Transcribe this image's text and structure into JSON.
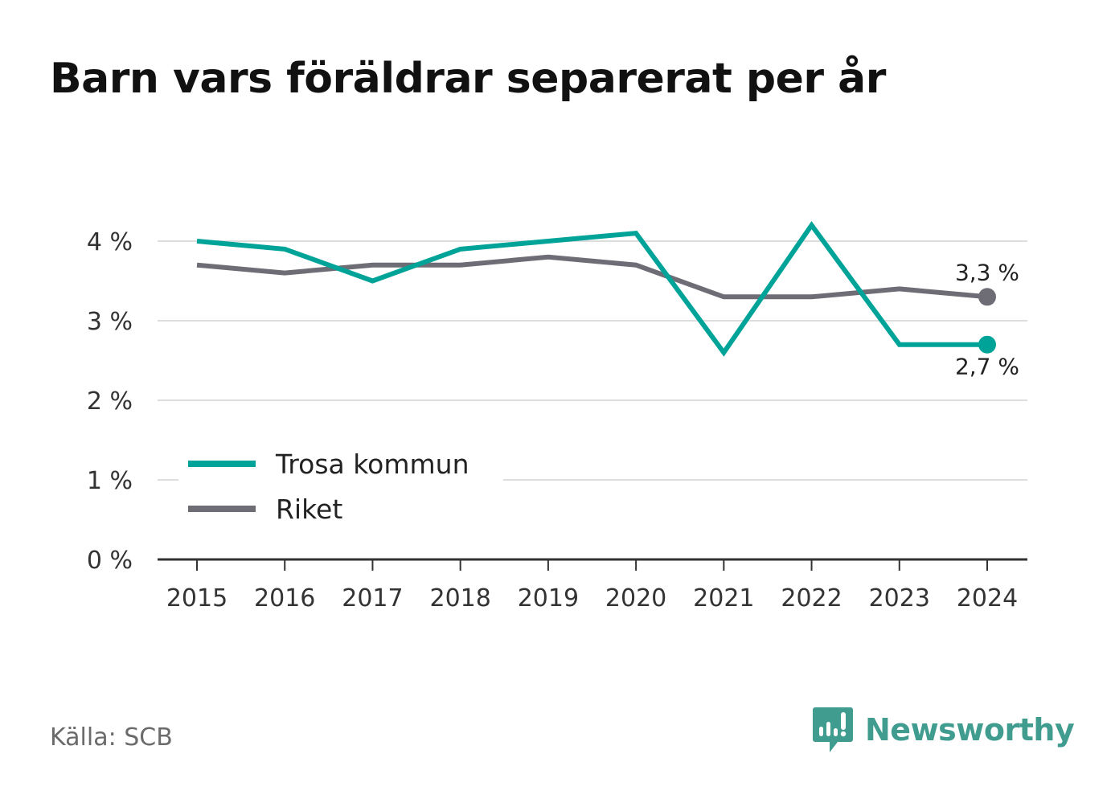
{
  "title": "Barn vars föräldrar separerat per år",
  "source": "Källa: SCB",
  "brand": {
    "name": "Newsworthy",
    "icon": "newsworthy-logo-icon"
  },
  "colors": {
    "trosa": "#00a398",
    "riket": "#6e6d75",
    "grid": "#dddddd",
    "axis": "#333333",
    "brand": "#3f9c8f"
  },
  "chart_data": {
    "type": "line",
    "title": "Barn vars föräldrar separerat per år",
    "xlabel": "",
    "ylabel": "",
    "categories": [
      "2015",
      "2016",
      "2017",
      "2018",
      "2019",
      "2020",
      "2021",
      "2022",
      "2023",
      "2024"
    ],
    "ylim": [
      0,
      4
    ],
    "yticks": [
      0,
      1,
      2,
      3,
      4
    ],
    "ytick_labels": [
      "0 %",
      "1 %",
      "2 %",
      "3 %",
      "4 %"
    ],
    "grid": true,
    "legend_position": "bottom-left",
    "series": [
      {
        "name": "Trosa kommun",
        "color": "#00a398",
        "values": [
          4.0,
          3.9,
          3.5,
          3.9,
          4.0,
          4.1,
          2.6,
          4.2,
          2.7,
          2.7
        ],
        "end_label": "2,7 %"
      },
      {
        "name": "Riket",
        "color": "#6e6d75",
        "values": [
          3.7,
          3.6,
          3.7,
          3.7,
          3.8,
          3.7,
          3.3,
          3.3,
          3.4,
          3.3
        ],
        "end_label": "3,3 %"
      }
    ]
  }
}
